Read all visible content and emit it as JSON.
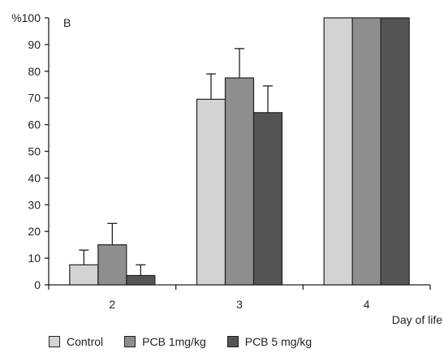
{
  "chart_data": {
    "type": "bar",
    "panel_label": "B",
    "y_unit": "%",
    "xlabel": "Day of life",
    "categories": [
      "2",
      "3",
      "4"
    ],
    "ylim": [
      0,
      100
    ],
    "yticks": [
      0,
      10,
      20,
      30,
      40,
      50,
      60,
      70,
      80,
      90,
      100
    ],
    "y_top_tick_label": "%100",
    "series": [
      {
        "name": "Control",
        "color": "#d3d3d3",
        "values": [
          7.5,
          69.5,
          100
        ],
        "errors": [
          5.5,
          9.5,
          0
        ]
      },
      {
        "name": "PCB 1mg/kg",
        "color": "#8e8e8e",
        "values": [
          15,
          77.5,
          100
        ],
        "errors": [
          8,
          11,
          0
        ]
      },
      {
        "name": "PCB 5 mg/kg",
        "color": "#545454",
        "values": [
          3.5,
          64.5,
          100
        ],
        "errors": [
          4,
          10,
          0
        ]
      }
    ],
    "grid": false,
    "legend_position": "bottom"
  }
}
